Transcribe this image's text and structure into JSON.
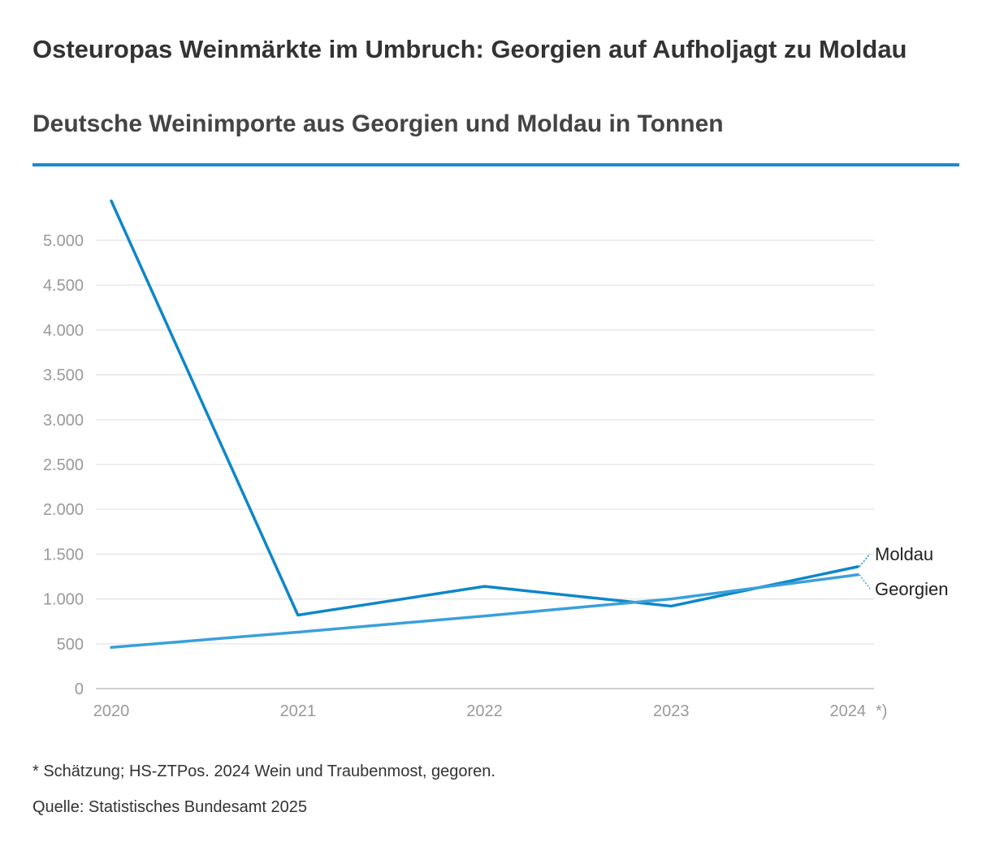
{
  "chart_data": {
    "type": "line",
    "title": "Osteuropas Weinmärkte im Umbruch: Georgien auf Aufholjagt zu Moldau",
    "subtitle": "Deutsche Weinimporte aus Georgien und Moldau in Tonnen",
    "xlabel": "",
    "ylabel": "",
    "categories": [
      "2020",
      "2021",
      "2022",
      "2023",
      "2024"
    ],
    "x_suffix_last": "*)",
    "ylim": [
      0,
      5500
    ],
    "yticks": [
      0,
      500,
      1000,
      1500,
      2000,
      2500,
      3000,
      3500,
      4000,
      4500,
      5000
    ],
    "ytick_labels": [
      "0",
      "500",
      "1.000",
      "1.500",
      "2.000",
      "2.500",
      "3.000",
      "3.500",
      "4.000",
      "4.500",
      "5.000"
    ],
    "grid": true,
    "series": [
      {
        "name": "Moldau",
        "values": [
          5440,
          820,
          1140,
          920,
          1360
        ],
        "color": "#0d87c8"
      },
      {
        "name": "Georgien",
        "values": [
          460,
          630,
          810,
          1000,
          1270
        ],
        "color": "#3aa0da"
      }
    ]
  },
  "footnote": "* Schätzung; HS-ZTPos. 2024 Wein und Traubenmost, gegoren.",
  "source": "Quelle: Statistisches Bundesamt 2025",
  "accent_color": "#1e8ac9"
}
